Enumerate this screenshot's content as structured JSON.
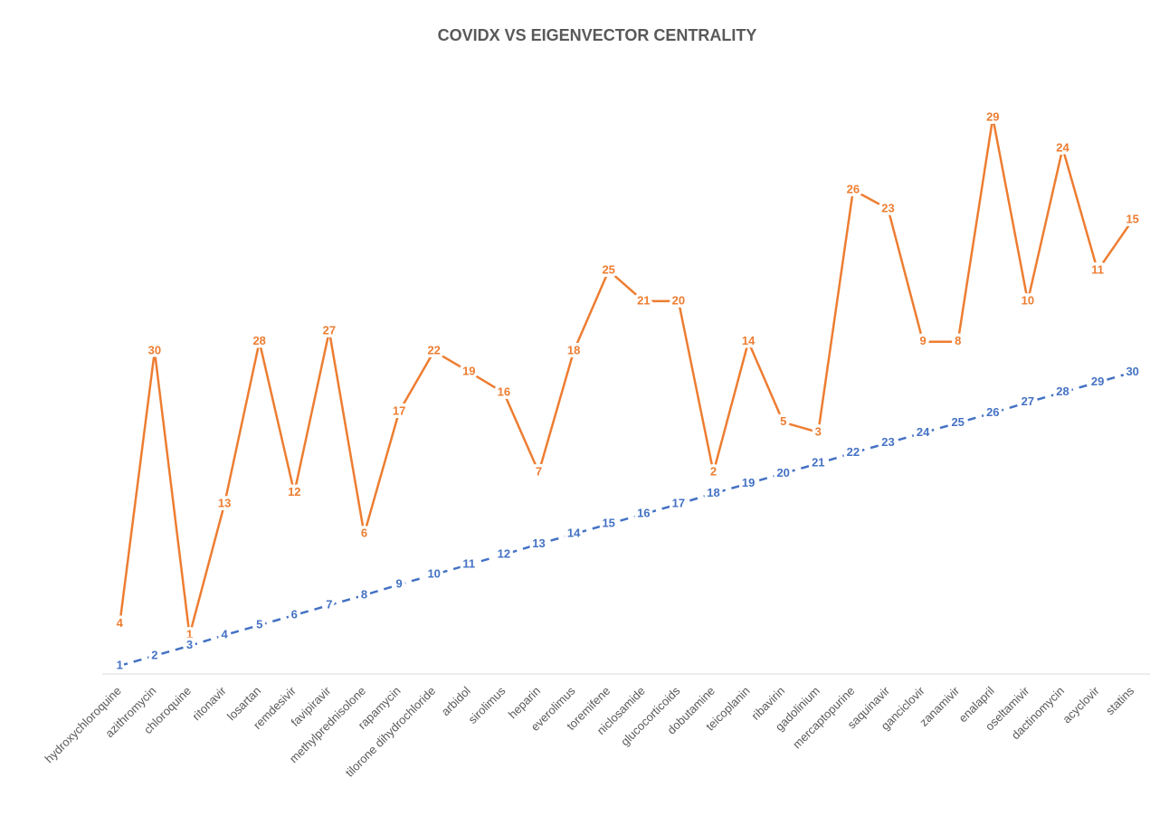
{
  "chart_data": {
    "type": "line",
    "title": "COVIDX VS EIGENVECTOR CENTRALITY",
    "categories": [
      "hydroxychloroquine",
      "azithromycin",
      "chloroquine",
      "ritonavir",
      "losartan",
      "remdesivir",
      "favipiravir",
      "methylprednisolone",
      "rapamycin",
      "tilorone dihydrochloride",
      "arbidol",
      "sirolimus",
      "heparin",
      "everolimus",
      "toremifene",
      "niclosamide",
      "glucocorticoids",
      "dobutamine",
      "teicoplanin",
      "ribavirin",
      "gadolinium",
      "mercaptopurine",
      "saquinavir",
      "ganciclovir",
      "zanamivir",
      "enalapril",
      "oseltamivir",
      "dactinomycin",
      "acyclovir",
      "statins"
    ],
    "ylim": [
      0,
      100
    ],
    "series": [
      {
        "color": "#ed7d31",
        "dashed": false,
        "values": [
          8.5,
          54.9,
          6.6,
          28.9,
          56.5,
          30.8,
          58.3,
          23.8,
          44.6,
          54.9,
          51.4,
          47.8,
          34.3,
          54.9,
          68.6,
          63.4,
          63.4,
          34.3,
          56.5,
          42.8,
          41.1,
          82.3,
          79.1,
          56.5,
          56.5,
          94.6,
          63.4,
          89.4,
          68.6,
          77.2
        ],
        "data_labels": [
          4,
          30,
          1,
          13,
          28,
          12,
          27,
          6,
          17,
          22,
          19,
          16,
          7,
          18,
          25,
          21,
          20,
          2,
          14,
          5,
          3,
          26,
          23,
          9,
          8,
          29,
          10,
          24,
          11,
          15
        ]
      },
      {
        "color": "#4472c4",
        "dashed": true,
        "values": [
          1.4,
          3.1,
          4.8,
          6.6,
          8.3,
          10.0,
          11.7,
          13.4,
          15.2,
          16.9,
          18.6,
          20.3,
          22.1,
          23.8,
          25.5,
          27.2,
          28.9,
          30.7,
          32.4,
          34.1,
          35.8,
          37.6,
          39.3,
          41.0,
          42.7,
          44.4,
          46.2,
          47.9,
          49.6,
          51.3
        ],
        "data_labels": [
          1,
          2,
          3,
          4,
          5,
          6,
          7,
          8,
          9,
          10,
          11,
          12,
          13,
          14,
          15,
          16,
          17,
          18,
          19,
          20,
          21,
          22,
          23,
          24,
          25,
          26,
          27,
          28,
          29,
          30
        ]
      }
    ]
  }
}
